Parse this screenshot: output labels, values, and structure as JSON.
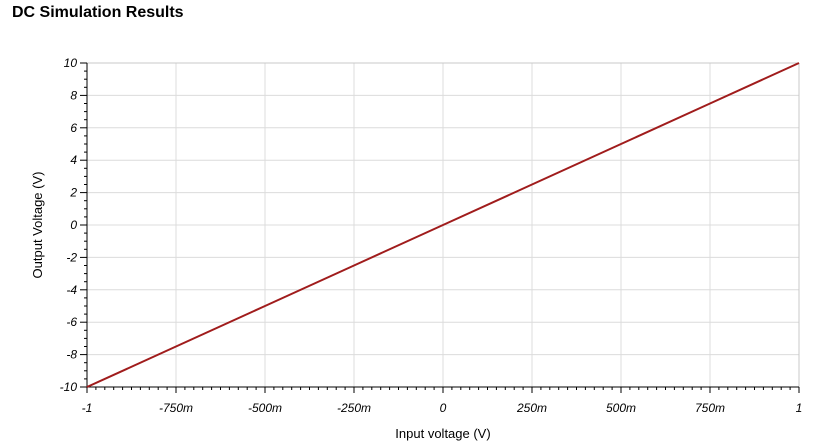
{
  "page": {
    "title": "DC Simulation Results"
  },
  "chart_data": {
    "type": "line",
    "title": "",
    "xlabel": "Input voltage (V)",
    "ylabel": "Output Voltage (V)",
    "xlim": [
      -1,
      1
    ],
    "ylim": [
      -10,
      10
    ],
    "x_ticks": [
      {
        "value": -1,
        "label": "-1"
      },
      {
        "value": -0.75,
        "label": "-750m"
      },
      {
        "value": -0.5,
        "label": "-500m"
      },
      {
        "value": -0.25,
        "label": "-250m"
      },
      {
        "value": 0,
        "label": "0"
      },
      {
        "value": 0.25,
        "label": "250m"
      },
      {
        "value": 0.5,
        "label": "500m"
      },
      {
        "value": 0.75,
        "label": "750m"
      },
      {
        "value": 1,
        "label": "1"
      }
    ],
    "y_ticks": [
      {
        "value": 10,
        "label": "10"
      },
      {
        "value": 8,
        "label": "8"
      },
      {
        "value": 6,
        "label": "6"
      },
      {
        "value": 4,
        "label": "4"
      },
      {
        "value": 2,
        "label": "2"
      },
      {
        "value": 0,
        "label": "0"
      },
      {
        "value": -2,
        "label": "-2"
      },
      {
        "value": -4,
        "label": "-4"
      },
      {
        "value": -6,
        "label": "-6"
      },
      {
        "value": -8,
        "label": "-8"
      },
      {
        "value": -10,
        "label": "-10"
      }
    ],
    "grid": true,
    "series": [
      {
        "color": "#a01c1c",
        "x": [
          -1,
          -0.75,
          -0.5,
          -0.25,
          0,
          0.25,
          0.5,
          0.75,
          1
        ],
        "y": [
          -10,
          -7.5,
          -5,
          -2.5,
          0,
          2.5,
          5,
          7.5,
          10
        ]
      }
    ],
    "colors": {
      "grid": "#dcdcdc",
      "axis": "#000000",
      "frame": "#c8c8c8"
    }
  }
}
